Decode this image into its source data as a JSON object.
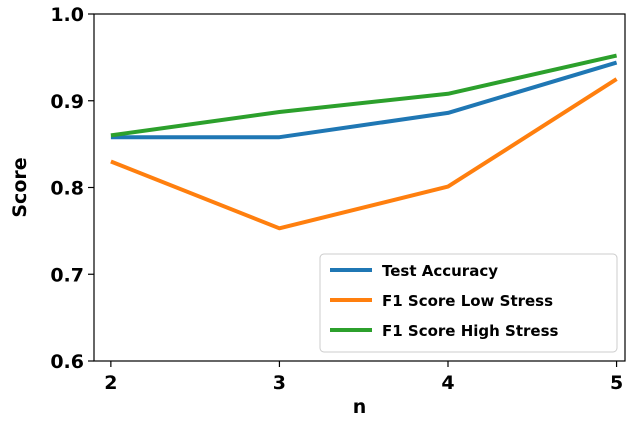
{
  "chart_data": {
    "type": "line",
    "title": "",
    "xlabel": "n",
    "ylabel": "Score",
    "x": [
      2,
      3,
      4,
      5
    ],
    "x_ticks": [
      "2",
      "3",
      "4",
      "5"
    ],
    "xlim": [
      1.9,
      5.05
    ],
    "ylim": [
      0.6,
      1.0
    ],
    "y_ticks": [
      "0.6",
      "0.7",
      "0.8",
      "0.9",
      "1.0"
    ],
    "grid": false,
    "legend_position": "bottom-right",
    "series": [
      {
        "name": "Test Accuracy",
        "color": "#1f77b4",
        "values": [
          0.858,
          0.858,
          0.886,
          0.944
        ]
      },
      {
        "name": "F1 Score Low Stress",
        "color": "#ff7f0e",
        "values": [
          0.83,
          0.753,
          0.801,
          0.925
        ]
      },
      {
        "name": "F1 Score High Stress",
        "color": "#2ca02c",
        "values": [
          0.86,
          0.887,
          0.908,
          0.952
        ]
      }
    ]
  }
}
